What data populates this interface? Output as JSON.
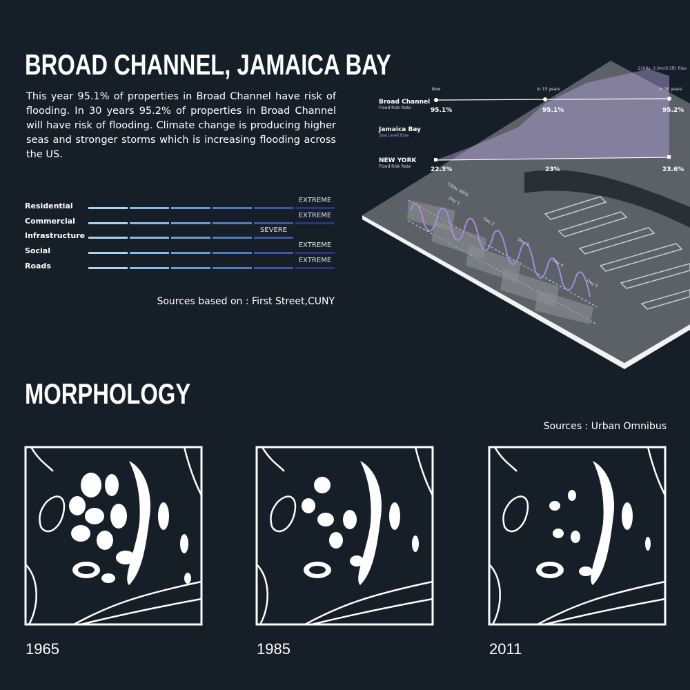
{
  "header": {
    "title": "BROAD CHANNEL, JAMAICA BAY",
    "description": "This year 95.1% of properties in Broad Channel have risk of flooding. In 30 years 95.2% of properties in Broad Channel will have risk of flooding. Climate change is producing higher seas and stronger storms which is increasing flooding across the US."
  },
  "risk": {
    "rows": [
      {
        "label": "Residential",
        "level": "EXTREME"
      },
      {
        "label": "Commercial",
        "level": "EXTREME"
      },
      {
        "label": "Infrastructure",
        "level": "SEVERE"
      },
      {
        "label": "Social",
        "level": "EXTREME"
      },
      {
        "label": "Roads",
        "level": "EXTREME"
      }
    ],
    "source": "Sources based on : First Street,CUNY"
  },
  "map": {
    "timeline": [
      "Now",
      "In 15 years",
      "In 30 years"
    ],
    "rise": "2100s: 2.9m(9.5ft) Rise",
    "rows": [
      {
        "name": "Broad Channel",
        "sub": "Flood Risk Rate",
        "values": [
          "95.1%",
          "95.1%",
          "95.2%"
        ]
      },
      {
        "name": "Jamaica Bay",
        "sub": "Sea Level Rise"
      },
      {
        "name": "NEW YORK",
        "sub": "Flood Risk Rate",
        "values": [
          "22.3%",
          "23%",
          "23.6%"
        ]
      }
    ],
    "tidal": "TIDAL INFO",
    "days": [
      "Day 1",
      "Day 2",
      "Day 3",
      "Day 4",
      "Day 5"
    ]
  },
  "morphology": {
    "title": "MORPHOLOGY",
    "source": "Sources : Urban Omnibus",
    "years": [
      "1965",
      "1985",
      "2011"
    ]
  }
}
